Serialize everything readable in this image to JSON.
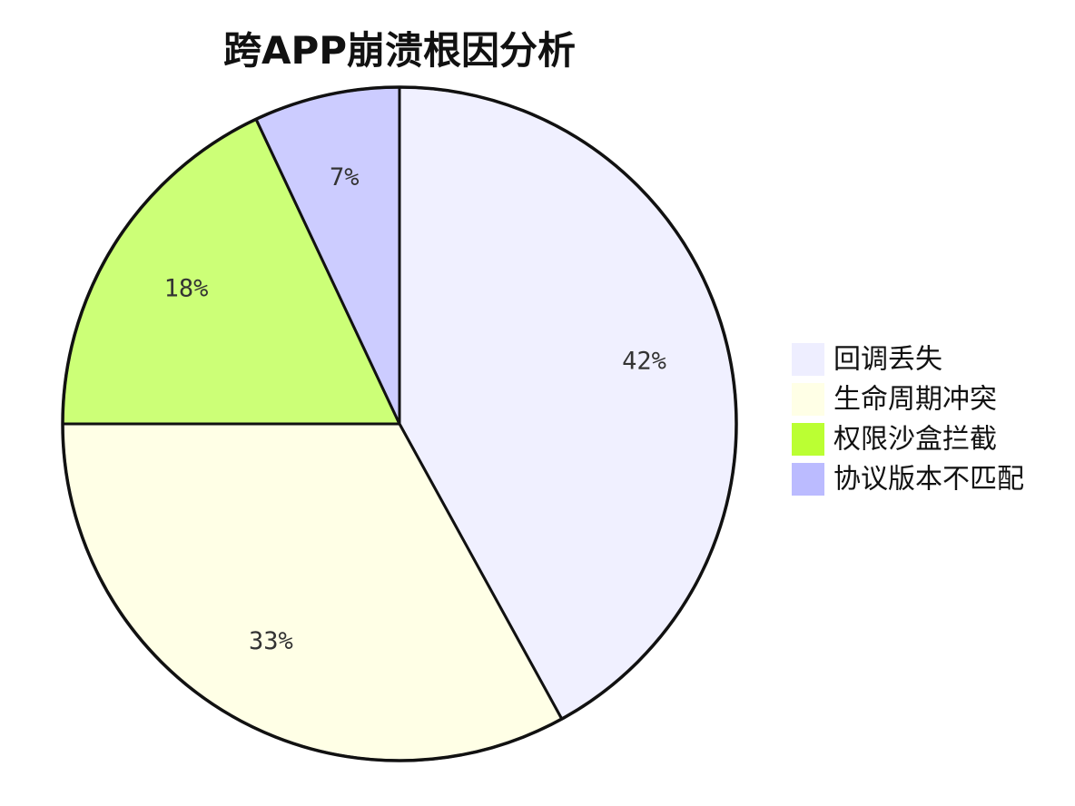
{
  "chart_data": {
    "type": "pie",
    "title": "跨APP崩溃根因分析",
    "start_angle_deg": 0,
    "direction": "clockwise",
    "slices": [
      {
        "label": "回调丢失",
        "value": 42,
        "value_label": "42%",
        "color": "#f0f0ff"
      },
      {
        "label": "生命周期冲突",
        "value": 33,
        "value_label": "33%",
        "color": "#ffffe6"
      },
      {
        "label": "权限沙盒拦截",
        "value": 18,
        "value_label": "18%",
        "color": "#ccff77"
      },
      {
        "label": "协议版本不匹配",
        "value": 7,
        "value_label": "7%",
        "color": "#ccccff"
      }
    ],
    "legend": {
      "placement": "right",
      "entries": [
        {
          "label": "回调丢失",
          "color": "#eeeeff"
        },
        {
          "label": "生命周期冲突",
          "color": "#ffffe6"
        },
        {
          "label": "权限沙盒拦截",
          "color": "#bbff33"
        },
        {
          "label": "协议版本不匹配",
          "color": "#bbbbff"
        }
      ]
    },
    "outline_color": "#111111"
  }
}
